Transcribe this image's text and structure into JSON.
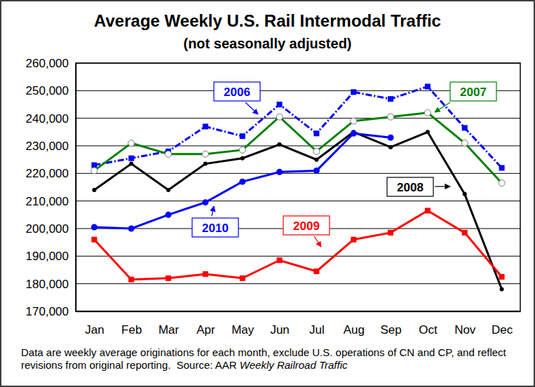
{
  "chart_data": {
    "type": "line",
    "title": "Average Weekly U.S. Rail Intermodal Traffic",
    "subtitle": "(not seasonally adjusted)",
    "note": "Data are weekly average originations for each month, exclude U.S. operations of CN and CP, and reflect revisions from original reporting.",
    "source_label": "Source: AAR",
    "source_title": "Weekly Railroad Traffic",
    "categories": [
      "Jan",
      "Feb",
      "Mar",
      "Apr",
      "May",
      "Jun",
      "Jul",
      "Aug",
      "Sep",
      "Oct",
      "Nov",
      "Dec"
    ],
    "series": [
      {
        "name": "2006",
        "color": "#0000ff",
        "marker": "square",
        "line_style": "dashdot",
        "values": [
          223000,
          225500,
          228000,
          237000,
          233500,
          245000,
          234500,
          249500,
          247000,
          251500,
          236500,
          222000
        ]
      },
      {
        "name": "2007",
        "color": "#008000",
        "marker": "circle-open",
        "line_style": "solid",
        "values": [
          221000,
          231000,
          227000,
          227000,
          228500,
          240500,
          228000,
          239000,
          240500,
          242000,
          231000,
          216500
        ]
      },
      {
        "name": "2008",
        "color": "#000000",
        "marker": "dot",
        "line_style": "solid",
        "values": [
          214000,
          223500,
          214000,
          223500,
          225500,
          230500,
          225000,
          235000,
          229500,
          235000,
          212500,
          178000
        ]
      },
      {
        "name": "2009",
        "color": "#ff0000",
        "marker": "square",
        "line_style": "solid",
        "values": [
          196000,
          181500,
          182000,
          183500,
          182000,
          188500,
          184500,
          196000,
          198500,
          206500,
          198500,
          182500
        ]
      },
      {
        "name": "2010",
        "color": "#0000ff",
        "marker": "circle",
        "line_style": "solid",
        "values": [
          200500,
          200000,
          205000,
          209500,
          217000,
          220500,
          221000,
          234500,
          233000,
          null,
          null,
          null
        ]
      }
    ],
    "ylim": [
      170000,
      260000
    ],
    "yticks": [
      {
        "value": 170000,
        "label": "170,000"
      },
      {
        "value": 180000,
        "label": "180,000"
      },
      {
        "value": 190000,
        "label": "190,000"
      },
      {
        "value": 200000,
        "label": "200,000"
      },
      {
        "value": 210000,
        "label": "210,000"
      },
      {
        "value": 220000,
        "label": "220,000"
      },
      {
        "value": 230000,
        "label": "230,000"
      },
      {
        "value": 240000,
        "label": "240,000"
      },
      {
        "value": 250000,
        "label": "250,000"
      },
      {
        "value": 260000,
        "label": "260,000"
      }
    ],
    "grid": true
  }
}
